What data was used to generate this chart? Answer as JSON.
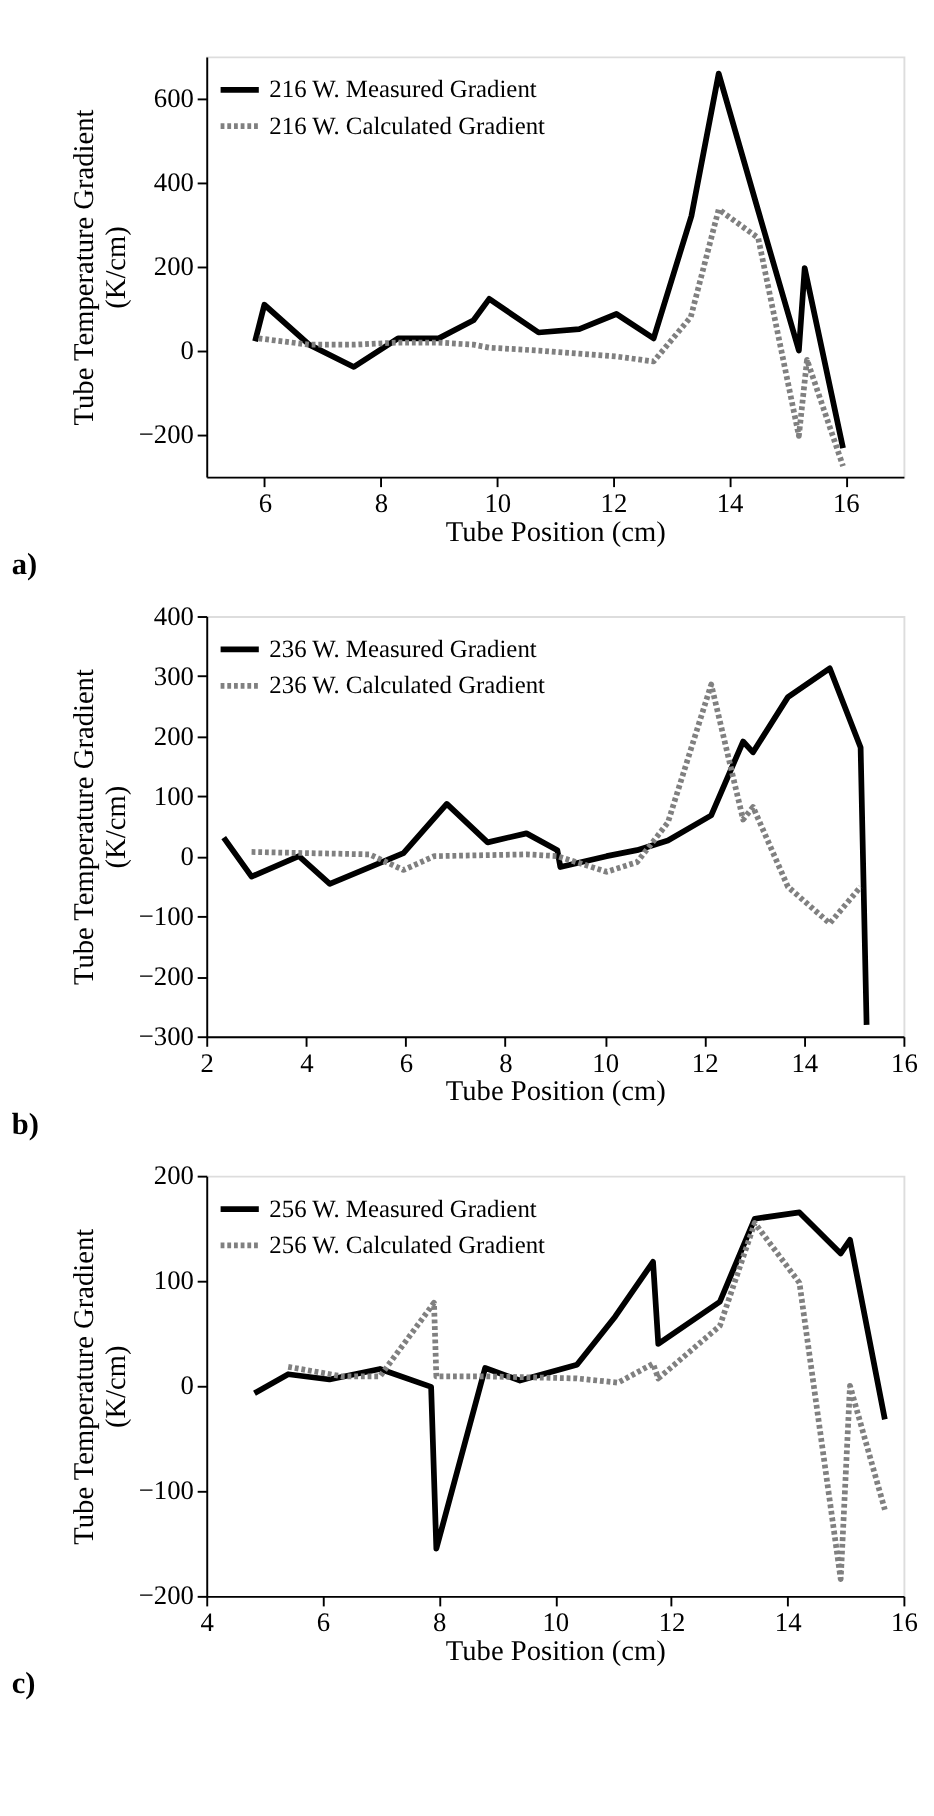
{
  "chart_data": [
    {
      "type": "line",
      "title": "a)",
      "xlabel": "Tube Position (cm)",
      "ylabel": "Tube Temperature Gradient\n(K/cm)",
      "xlim": [
        5,
        17
      ],
      "xticks": [
        6,
        8,
        10,
        12,
        14,
        16
      ],
      "ylim": [
        -300,
        700
      ],
      "yticks": [
        -200,
        0,
        200,
        400,
        600
      ],
      "legend": "top left",
      "grid": false,
      "series": [
        {
          "name": "216 W. Measured Gradient",
          "color": "#000000",
          "line_style": "solid",
          "x": [
            5.84,
            6,
            6.77,
            7.54,
            8.3,
            9,
            9.6,
            9.87,
            10.72,
            11.42,
            12.06,
            12.7,
            13.35,
            13.82,
            14.5,
            15.2,
            15.3,
            15.96
          ],
          "values": [
            22,
            109,
            14,
            -39,
            29,
            29,
            72,
            123,
            43,
            51,
            87,
            29,
            320,
            659,
            333,
            0,
            196,
            -232
          ]
        },
        {
          "name": "216 W. Calculated Gradient",
          "color": "#808080",
          "line_style": "dotted",
          "x": [
            5.9,
            6.77,
            7.54,
            8.3,
            9,
            9.6,
            9.87,
            10.72,
            12.06,
            12.7,
            13.34,
            13.82,
            14.5,
            15.2,
            15.34,
            15.96
          ],
          "values": [
            29,
            14,
            14,
            19,
            19,
            14,
            7,
            0,
            -14,
            -26,
            80,
            336,
            268,
            -203,
            -22,
            -275
          ]
        }
      ]
    },
    {
      "type": "line",
      "title": "b)",
      "xlabel": "Tube Position (cm)",
      "ylabel": "Tube Temperature Gradient\n(K/cm)",
      "xlim": [
        2,
        16
      ],
      "xticks": [
        2,
        4,
        6,
        8,
        10,
        12,
        14,
        16
      ],
      "ylim": [
        -300,
        400
      ],
      "yticks": [
        -300,
        -200,
        -100,
        0,
        100,
        200,
        300,
        400
      ],
      "legend": "top left",
      "grid": false,
      "series": [
        {
          "name": "236 W. Measured Gradient",
          "color": "#000000",
          "line_style": "solid",
          "x": [
            2.35,
            2.91,
            3.86,
            4.48,
            5.96,
            6.83,
            7.65,
            8.43,
            9.05,
            9.11,
            10.04,
            10.65,
            11.27,
            12.14,
            12.78,
            12.98,
            13.68,
            14.52,
            15.14,
            15.26
          ],
          "values": [
            31,
            -34,
            0,
            -46,
            5,
            87,
            23,
            38,
            10,
            -18,
            0,
            10,
            26,
            68,
            191,
            173,
            265,
            313,
            181,
            -281
          ]
        },
        {
          "name": "236 W. Calculated Gradient",
          "color": "#808080",
          "line_style": "dotted",
          "x": [
            2.91,
            5.28,
            5.96,
            6.58,
            8.43,
            9.05,
            10.04,
            10.65,
            11.27,
            12.14,
            12.78,
            12.98,
            13.68,
            14.52,
            15.14
          ],
          "values": [
            7,
            3,
            -23,
            0,
            3,
            0,
            -26,
            -10,
            56,
            286,
            61,
            82,
            -51,
            -112,
            -51
          ]
        }
      ]
    },
    {
      "type": "line",
      "title": "c)",
      "xlabel": "Tube Position (cm)",
      "ylabel": "Tube Temperature Gradient\n(K/cm)",
      "xlim": [
        4,
        16
      ],
      "xticks": [
        4,
        6,
        8,
        10,
        12,
        14,
        16
      ],
      "ylim": [
        -200,
        200
      ],
      "yticks": [
        -200,
        -100,
        0,
        100,
        200
      ],
      "legend": "top left",
      "grid": false,
      "series": [
        {
          "name": "256 W. Measured Gradient",
          "color": "#000000",
          "line_style": "solid",
          "x": [
            4.83,
            5.41,
            6.12,
            6.99,
            7.87,
            7.96,
            8.8,
            9.4,
            10.38,
            11.04,
            11.69,
            11.78,
            12.84,
            13.44,
            14.21,
            14.92,
            15.08,
            15.68
          ],
          "values": [
            -7,
            11,
            6,
            16,
            -1,
            -155,
            17,
            5,
            20,
            66,
            118,
            40,
            80,
            159,
            165,
            126,
            139,
            -32
          ]
        },
        {
          "name": "256 W. Calculated Gradient",
          "color": "#808080",
          "line_style": "dotted",
          "x": [
            5.41,
            6.34,
            6.99,
            7.92,
            7.96,
            8.8,
            10.38,
            11.09,
            11.69,
            11.78,
            12.84,
            13.44,
            14.21,
            14.92,
            15.08,
            15.68
          ],
          "values": [
            18,
            9,
            9,
            79,
            9,
            9,
            7,
            3,
            21,
            7,
            57,
            155,
            98,
            -184,
            0,
            -118
          ]
        }
      ]
    }
  ]
}
